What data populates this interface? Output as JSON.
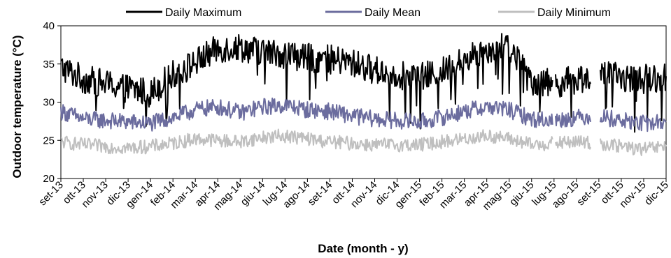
{
  "chart_data": {
    "type": "line",
    "xlabel": "Date (month - y)",
    "ylabel": "Outdoor temperature (°C)",
    "ylim": [
      20,
      40
    ],
    "yticks": [
      "20",
      "25",
      "30",
      "35",
      "40"
    ],
    "categories": [
      "set-13",
      "ott-13",
      "nov-13",
      "dic-13",
      "gen-14",
      "feb-14",
      "mar-14",
      "apr-14",
      "mag-14",
      "giu-14",
      "lug-14",
      "ago-14",
      "set-14",
      "ott-14",
      "nov-14",
      "dic-14",
      "gen-15",
      "feb-15",
      "mar-15",
      "apr-15",
      "mag-15",
      "giu-15",
      "lug-15",
      "ago-15",
      "set-15",
      "ott-15",
      "nov-15",
      "dic-15"
    ],
    "x_start": "set-13",
    "x_end": "dic-15",
    "grid": false,
    "legend_position": "top",
    "series": [
      {
        "name": "Daily Maximum",
        "color": "#000000",
        "values": [
          34.6,
          33.0,
          32.4,
          31.8,
          31.2,
          33.6,
          35.2,
          37.0,
          37.2,
          36.6,
          36.3,
          35.8,
          35.6,
          35.1,
          34.2,
          33.6,
          33.2,
          34.0,
          35.6,
          37.0,
          37.2,
          32.8,
          32.4,
          33.0,
          33.6,
          33.2,
          33.0,
          33.4
        ],
        "gaps": [
          22,
          24
        ]
      },
      {
        "name": "Daily Mean",
        "color": "#6b6c9e",
        "values": [
          28.8,
          27.8,
          27.6,
          27.4,
          27.2,
          28.0,
          29.0,
          29.4,
          28.6,
          29.4,
          29.6,
          29.0,
          28.8,
          28.2,
          27.8,
          27.6,
          27.4,
          28.0,
          28.8,
          29.4,
          29.0,
          27.8,
          27.6,
          28.0,
          28.2,
          27.6,
          27.2,
          27.4
        ],
        "gaps": [
          22,
          24
        ]
      },
      {
        "name": "Daily Minimum",
        "color": "#bfbfbf",
        "values": [
          24.8,
          24.4,
          24.2,
          24.0,
          24.2,
          24.6,
          25.2,
          25.0,
          24.8,
          25.4,
          25.6,
          25.2,
          24.8,
          24.6,
          24.4,
          24.4,
          24.4,
          24.8,
          25.2,
          25.6,
          25.2,
          24.4,
          24.6,
          24.8,
          24.6,
          24.2,
          23.8,
          24.2
        ],
        "gaps": [
          22,
          24
        ]
      }
    ]
  }
}
